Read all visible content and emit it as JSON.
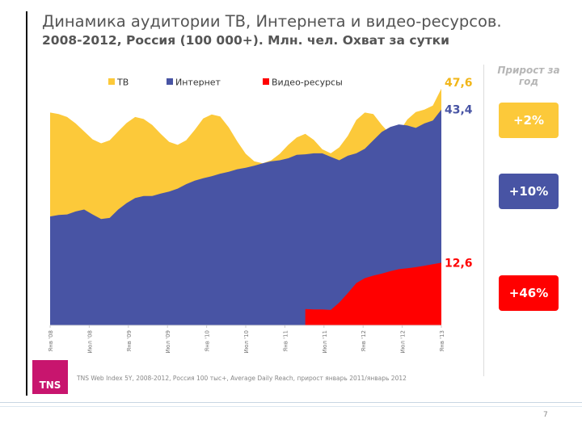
{
  "slide": {
    "page_number": "7"
  },
  "chart_data": {
    "type": "area",
    "title": "Динамика аудитории ТВ, Интернета и видео-ресурсов.",
    "subtitle": "2008-2012, Россия (100 000+). Млн. чел. Охват за сутки",
    "xlabel": "",
    "ylabel": "",
    "ylim": [
      0,
      50
    ],
    "grid": false,
    "legend_position": "top-left",
    "x_tick_labels": [
      "Янв '08",
      "Июл '08",
      "Янв '09",
      "Июл '09",
      "Янв '10",
      "Июл '10",
      "Янв '11",
      "Июл '11",
      "Янв '12",
      "Июл '12",
      "Янв '13"
    ],
    "series": [
      {
        "name": "ТВ",
        "color": "#fcc93a",
        "end_label": "47,6",
        "values": [
          42.8,
          42.5,
          41.9,
          40.6,
          39.0,
          37.4,
          36.6,
          37.2,
          39.0,
          40.7,
          41.9,
          41.5,
          40.3,
          38.5,
          36.9,
          36.3,
          37.2,
          39.3,
          41.6,
          42.4,
          42.0,
          39.8,
          37.0,
          34.5,
          33.0,
          32.6,
          33.2,
          34.5,
          36.3,
          37.8,
          38.5,
          37.3,
          35.4,
          34.6,
          35.8,
          38.1,
          41.3,
          42.8,
          42.5,
          40.3,
          38.4,
          38.8,
          41.4,
          42.9,
          43.4,
          44.2,
          47.6
        ]
      },
      {
        "name": "Интернет",
        "color": "#4854a4",
        "end_label": "43,4",
        "values": [
          21.9,
          22.2,
          22.3,
          22.9,
          23.3,
          22.3,
          21.4,
          21.6,
          23.3,
          24.6,
          25.6,
          26.0,
          26.0,
          26.5,
          26.9,
          27.5,
          28.4,
          29.1,
          29.6,
          30.0,
          30.5,
          30.9,
          31.4,
          31.7,
          32.1,
          32.6,
          33.0,
          33.2,
          33.6,
          34.3,
          34.4,
          34.6,
          34.6,
          33.9,
          33.2,
          34.1,
          34.6,
          35.5,
          37.2,
          38.9,
          39.9,
          40.4,
          40.2,
          39.7,
          40.6,
          41.2,
          43.4
        ]
      },
      {
        "name": "Видео-ресурсы",
        "color": "#ff0000",
        "end_label": "12,6",
        "values": [
          null,
          null,
          null,
          null,
          null,
          null,
          null,
          null,
          null,
          null,
          null,
          null,
          null,
          null,
          null,
          null,
          null,
          null,
          null,
          null,
          null,
          null,
          null,
          null,
          null,
          null,
          null,
          null,
          null,
          null,
          3.3,
          3.2,
          3.2,
          3.1,
          4.6,
          6.5,
          8.5,
          9.5,
          10.0,
          10.4,
          10.9,
          11.3,
          11.5,
          11.7,
          12.0,
          12.3,
          12.6
        ]
      }
    ]
  },
  "growth_panel": {
    "header": "Прирост за год",
    "badges": [
      {
        "series": "ТВ",
        "value": "+2%",
        "color": "#fcc93a"
      },
      {
        "series": "Интернет",
        "value": "+10%",
        "color": "#4854a4"
      },
      {
        "series": "Видео-ресурсы",
        "value": "+46%",
        "color": "#ff0000"
      }
    ]
  },
  "footer": {
    "logo_text": "TNS",
    "logo_color": "#c8156e",
    "source_note": "TNS Web Index 5Y, 2008-2012, Россия 100 тыс+, Average Daily Reach, прирост январь 2011/январь 2012"
  }
}
